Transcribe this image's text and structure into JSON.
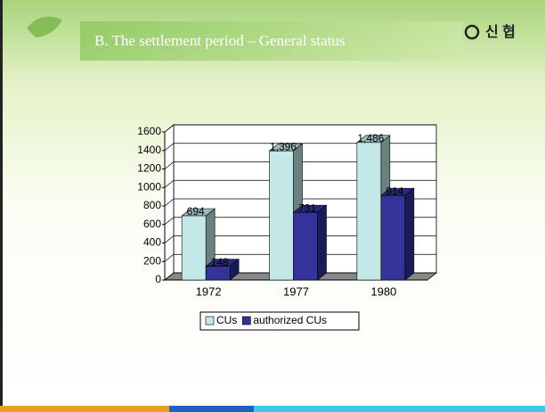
{
  "header": {
    "title": "B. The settlement period – General status",
    "logo": "신 협"
  },
  "chart_data": {
    "type": "bar3d",
    "categories": [
      "1972",
      "1977",
      "1980"
    ],
    "series": [
      {
        "name": "CUs",
        "color": "#c4e8e8",
        "values": [
          694,
          1396,
          1486
        ],
        "value_labels": [
          "694",
          "1,396",
          "1,486"
        ]
      },
      {
        "name": "authorized CUs",
        "color": "#333399",
        "values": [
          148,
          731,
          914
        ]
      }
    ],
    "ylim": [
      0,
      1600
    ],
    "yticks": [
      0,
      200,
      400,
      600,
      800,
      1000,
      1200,
      1400,
      1600
    ],
    "grid": true,
    "legend": "bottom"
  }
}
